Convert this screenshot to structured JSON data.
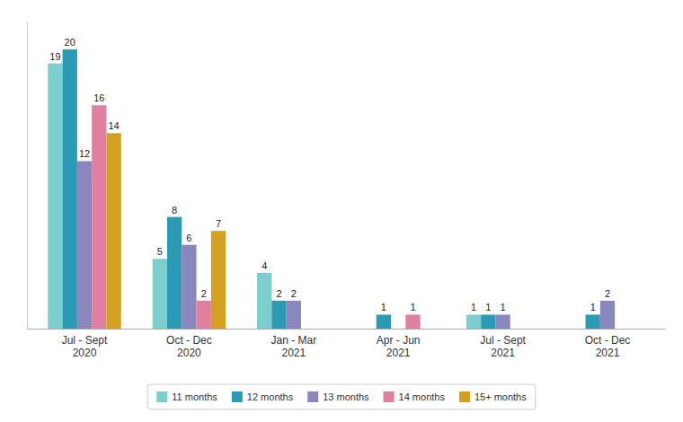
{
  "chart_data": {
    "type": "bar",
    "categories": [
      "Jul - Sept\n2020",
      "Oct - Dec\n2020",
      "Jan - Mar\n2021",
      "Apr - Jun\n2021",
      "Jul - Sept\n2021",
      "Oct - Dec\n2021"
    ],
    "series": [
      {
        "name": "11 months",
        "color": "#7DCECE",
        "values": [
          19,
          5,
          4,
          0,
          1,
          0
        ]
      },
      {
        "name": "12 months",
        "color": "#2B9BB5",
        "values": [
          20,
          8,
          2,
          1,
          1,
          1
        ]
      },
      {
        "name": "13 months",
        "color": "#8A87BE",
        "values": [
          12,
          6,
          2,
          0,
          1,
          2
        ]
      },
      {
        "name": "14 months",
        "color": "#E07FA0",
        "values": [
          16,
          2,
          0,
          1,
          0,
          0
        ]
      },
      {
        "name": "15+ months",
        "color": "#D4A020",
        "values": [
          14,
          7,
          0,
          0,
          0,
          0
        ]
      }
    ],
    "ylim": [
      0,
      22
    ],
    "grid": false,
    "legend": "bottom",
    "data_labels": true,
    "tick_labels": "x"
  }
}
